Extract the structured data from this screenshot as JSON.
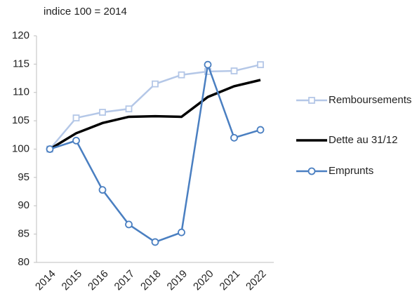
{
  "chart_data": {
    "type": "line",
    "subtitle": "indice 100 = 2014",
    "categories": [
      "2014",
      "2015",
      "2016",
      "2017",
      "2018",
      "2019",
      "2020",
      "2021",
      "2022"
    ],
    "series": [
      {
        "name": "Remboursements",
        "color": "#b4c7e7",
        "marker": "square",
        "values": [
          100,
          105.5,
          106.5,
          107.1,
          111.5,
          113.1,
          113.7,
          113.8,
          114.9
        ]
      },
      {
        "name": "Dette au 31/12",
        "color": "#000000",
        "marker": "none",
        "values": [
          100,
          102.8,
          104.6,
          105.7,
          105.8,
          105.7,
          109.2,
          111.1,
          112.2
        ]
      },
      {
        "name": "Emprunts",
        "color": "#4a7fc1",
        "marker": "circle",
        "values": [
          100,
          101.5,
          92.8,
          86.7,
          83.6,
          85.3,
          114.9,
          102.0,
          103.4
        ]
      }
    ],
    "ylim": [
      80,
      120
    ],
    "yticks": [
      80,
      85,
      90,
      95,
      100,
      105,
      110,
      115,
      120
    ],
    "grid": false,
    "legend": "right"
  }
}
